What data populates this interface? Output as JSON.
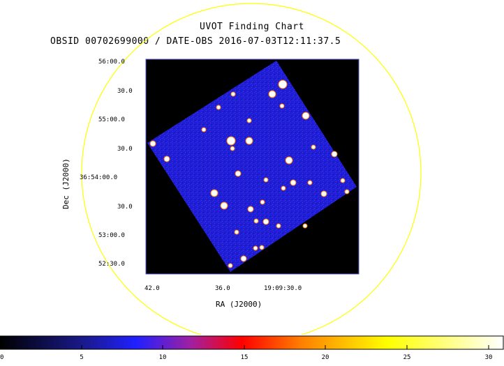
{
  "header": {
    "title": "UVOT Finding Chart",
    "subtitle": "OBSID 00702699000 / DATE-OBS 2016-07-03T12:11:37.5"
  },
  "axes": {
    "dec_label": "Dec (J2000)",
    "ra_label": "RA (J2000)",
    "dec_ticks": [
      "56:00.0",
      "30.0",
      "55:00.0",
      "30.0",
      "36:54:00.0",
      "30.0",
      "53:00.0",
      "52:30.0"
    ],
    "ra_ticks": [
      "42.0",
      "36.0",
      "19:09:30.0"
    ]
  },
  "colorbar": {
    "ticks": [
      "0",
      "5",
      "10",
      "15",
      "20",
      "25",
      "30"
    ],
    "range": [
      0,
      30.5
    ]
  },
  "colors": {
    "background": "#000000",
    "field": "#1a1ad8",
    "circle": "#ffff00",
    "frame": "#5050c8"
  }
}
